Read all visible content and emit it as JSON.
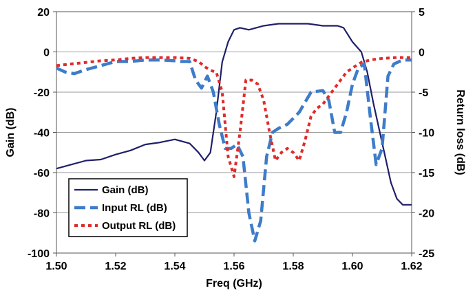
{
  "chart_data": {
    "type": "line",
    "xlabel": "Freq (GHz)",
    "ylabel_left": "Gain (dB)",
    "ylabel_right": "Return loss (dB)",
    "xlim": [
      1.5,
      1.62
    ],
    "ylim_left": [
      -100,
      20
    ],
    "ylim_right": [
      -25,
      5
    ],
    "x_ticks": [
      "1.50",
      "1.52",
      "1.54",
      "1.56",
      "1.58",
      "1.60",
      "1.62"
    ],
    "y_ticks_left": [
      "20",
      "0",
      "-20",
      "-40",
      "-60",
      "-80",
      "-100"
    ],
    "y_ticks_right": [
      "5",
      "0",
      "-5",
      "-10",
      "-15",
      "-20",
      "-25"
    ],
    "grid": "horizontal",
    "legend_position": "bottom-left",
    "series": [
      {
        "name": "Gain (dB)",
        "axis": "left",
        "color": "#1f1f6b",
        "style": "solid",
        "points": [
          [
            1.5,
            -58
          ],
          [
            1.505,
            -56
          ],
          [
            1.51,
            -54
          ],
          [
            1.515,
            -53.5
          ],
          [
            1.52,
            -51
          ],
          [
            1.525,
            -49
          ],
          [
            1.53,
            -46
          ],
          [
            1.535,
            -45
          ],
          [
            1.54,
            -43.5
          ],
          [
            1.545,
            -45.5
          ],
          [
            1.548,
            -50
          ],
          [
            1.55,
            -54
          ],
          [
            1.552,
            -50
          ],
          [
            1.554,
            -30
          ],
          [
            1.556,
            -5
          ],
          [
            1.558,
            5
          ],
          [
            1.56,
            11
          ],
          [
            1.562,
            12
          ],
          [
            1.565,
            11
          ],
          [
            1.57,
            13
          ],
          [
            1.575,
            14
          ],
          [
            1.58,
            14
          ],
          [
            1.585,
            14
          ],
          [
            1.59,
            13
          ],
          [
            1.595,
            13
          ],
          [
            1.597,
            12
          ],
          [
            1.6,
            5
          ],
          [
            1.603,
            0
          ],
          [
            1.605,
            -10
          ],
          [
            1.607,
            -25
          ],
          [
            1.61,
            -45
          ],
          [
            1.613,
            -65
          ],
          [
            1.615,
            -73
          ],
          [
            1.617,
            -76
          ],
          [
            1.62,
            -76
          ]
        ]
      },
      {
        "name": "Input RL (dB)",
        "axis": "right",
        "color": "#3d7cc9",
        "style": "dash",
        "points": [
          [
            1.5,
            -2
          ],
          [
            1.503,
            -2.5
          ],
          [
            1.506,
            -2.7
          ],
          [
            1.51,
            -2.2
          ],
          [
            1.515,
            -1.7
          ],
          [
            1.52,
            -1.2
          ],
          [
            1.525,
            -1.2
          ],
          [
            1.53,
            -1
          ],
          [
            1.535,
            -1
          ],
          [
            1.54,
            -1.1
          ],
          [
            1.542,
            -1.2
          ],
          [
            1.545,
            -1.2
          ],
          [
            1.547,
            -3.5
          ],
          [
            1.549,
            -4.5
          ],
          [
            1.551,
            -3
          ],
          [
            1.553,
            -5
          ],
          [
            1.555,
            -9
          ],
          [
            1.557,
            -12
          ],
          [
            1.559,
            -12
          ],
          [
            1.561,
            -11.5
          ],
          [
            1.563,
            -13
          ],
          [
            1.565,
            -20
          ],
          [
            1.567,
            -23.5
          ],
          [
            1.569,
            -21
          ],
          [
            1.571,
            -13
          ],
          [
            1.573,
            -10
          ],
          [
            1.575,
            -9.5
          ],
          [
            1.578,
            -9
          ],
          [
            1.582,
            -7.5
          ],
          [
            1.586,
            -5
          ],
          [
            1.59,
            -4.8
          ],
          [
            1.592,
            -6
          ],
          [
            1.594,
            -10
          ],
          [
            1.596,
            -10
          ],
          [
            1.598,
            -7.5
          ],
          [
            1.6,
            -4
          ],
          [
            1.602,
            -2
          ],
          [
            1.604,
            -1.5
          ],
          [
            1.606,
            -8
          ],
          [
            1.608,
            -14
          ],
          [
            1.61,
            -12
          ],
          [
            1.612,
            -3
          ],
          [
            1.614,
            -1.5
          ],
          [
            1.617,
            -1
          ],
          [
            1.62,
            -1
          ]
        ]
      },
      {
        "name": "Output RL (dB)",
        "axis": "right",
        "color": "#e02b2b",
        "style": "dot",
        "points": [
          [
            1.5,
            -1.7
          ],
          [
            1.505,
            -1.5
          ],
          [
            1.51,
            -1.3
          ],
          [
            1.515,
            -1.1
          ],
          [
            1.52,
            -1
          ],
          [
            1.525,
            -0.8
          ],
          [
            1.53,
            -0.7
          ],
          [
            1.535,
            -0.7
          ],
          [
            1.54,
            -0.7
          ],
          [
            1.545,
            -0.8
          ],
          [
            1.548,
            -1.2
          ],
          [
            1.55,
            -1.8
          ],
          [
            1.552,
            -2.3
          ],
          [
            1.554,
            -2.5
          ],
          [
            1.556,
            -5
          ],
          [
            1.558,
            -13
          ],
          [
            1.56,
            -15.5
          ],
          [
            1.562,
            -10
          ],
          [
            1.564,
            -3.5
          ],
          [
            1.566,
            -3.5
          ],
          [
            1.568,
            -4
          ],
          [
            1.57,
            -6
          ],
          [
            1.572,
            -10
          ],
          [
            1.574,
            -13.5
          ],
          [
            1.576,
            -12.5
          ],
          [
            1.578,
            -12
          ],
          [
            1.58,
            -12.5
          ],
          [
            1.582,
            -13.5
          ],
          [
            1.584,
            -11
          ],
          [
            1.586,
            -8
          ],
          [
            1.588,
            -7
          ],
          [
            1.59,
            -6.5
          ],
          [
            1.592,
            -5.5
          ],
          [
            1.595,
            -4
          ],
          [
            1.598,
            -2.5
          ],
          [
            1.6,
            -2
          ],
          [
            1.603,
            -1.3
          ],
          [
            1.606,
            -1
          ],
          [
            1.61,
            -0.8
          ],
          [
            1.615,
            -0.7
          ],
          [
            1.62,
            -0.7
          ]
        ]
      }
    ]
  }
}
